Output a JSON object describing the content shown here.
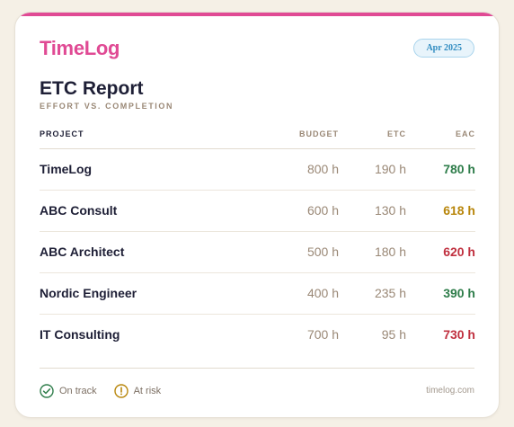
{
  "brand": {
    "name": "TimeLog",
    "accent": "#e04a94"
  },
  "period": "Apr 2025",
  "report": {
    "title": "ETC Report",
    "subtitle": "EFFORT VS. COMPLETION"
  },
  "table": {
    "headers": {
      "project": "PROJECT",
      "budget": "BUDGET",
      "etc": "ETC",
      "eac": "EAC"
    },
    "rows": [
      {
        "project": "TimeLog",
        "budget": "800 h",
        "etc": "190 h",
        "eac": "780 h",
        "status": "on-track"
      },
      {
        "project": "ABC Consult",
        "budget": "600 h",
        "etc": "130 h",
        "eac": "618 h",
        "status": "at-risk"
      },
      {
        "project": "ABC Architect",
        "budget": "500 h",
        "etc": "180 h",
        "eac": "620 h",
        "status": "over"
      },
      {
        "project": "Nordic Engineer",
        "budget": "400 h",
        "etc": "235 h",
        "eac": "390 h",
        "status": "on-track"
      },
      {
        "project": "IT Consulting",
        "budget": "700 h",
        "etc": "95 h",
        "eac": "730 h",
        "status": "over"
      }
    ]
  },
  "status_colors": {
    "on-track": "#2e7d4a",
    "at-risk": "#b8860b",
    "over": "#c0303f"
  },
  "legend": {
    "on_track": {
      "label": "On track",
      "icon": "check-circle-icon"
    },
    "at_risk": {
      "label": "At risk",
      "icon": "warning-circle-icon"
    }
  },
  "footer": {
    "site": "timelog.com"
  }
}
